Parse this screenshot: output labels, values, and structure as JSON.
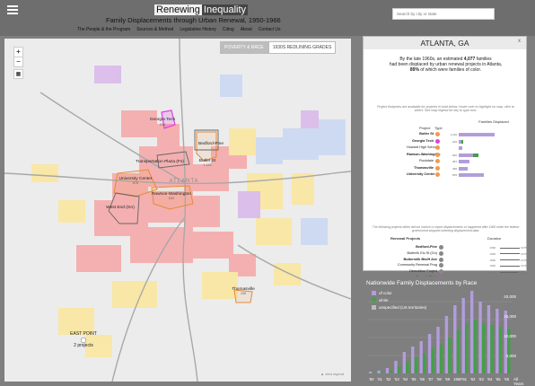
{
  "header": {
    "brand_part1": "Renewing",
    "brand_part2": "Inequality",
    "subtitle": "Family Displacements through Urban Renewal, 1950-1966",
    "nav": [
      "The People & the Program",
      "Sources & Method",
      "Legislative History",
      "Citing",
      "About",
      "Contact Us"
    ],
    "search_placeholder": "Search by city or state"
  },
  "map": {
    "toggle_active": "POVERTY & RACE",
    "toggle_inactive": "1930S REDLINING GRADES",
    "zoom_in": "+",
    "zoom_out": "−",
    "view_legend": "view legend",
    "city_label": "ATLANTA",
    "labels": [
      {
        "name": "Georgia Tech",
        "value": "216"
      },
      {
        "name": "Bedford-Pine",
        "value": ""
      },
      {
        "name": "Butler St",
        "value": "1,126"
      },
      {
        "name": "Transportation Plaza (Fs)",
        "value": ""
      },
      {
        "name": "University Center",
        "value": "878"
      },
      {
        "name": "Rawson-Washington",
        "value": "640"
      },
      {
        "name": "West End (Gn)",
        "value": ""
      },
      {
        "name": "Thomasville",
        "value": "336"
      },
      {
        "name": "EAST POINT",
        "value": "2 projects"
      }
    ],
    "colors": {
      "red": "#f6a6a6",
      "yellow": "#fbe79c",
      "blue": "#c9d8f3",
      "purple": "#d9b7ea",
      "orange": "#f29a4a",
      "magenta": "#e040e0"
    }
  },
  "panel": {
    "title": "ATLANTA, GA",
    "close": "x",
    "intro_line1": "By the late 1960s, an estimated",
    "families": "4,077",
    "intro_line1b": "families",
    "intro_line2": "had been displaced by urban renewal projects in Atlanta,",
    "pct": "89%",
    "intro_line3": "of which were families of color.",
    "note1": "Project footprints are available for projects in bold below. Hover over to highlight on map, click to select. See map legend for key to type icon.",
    "col_project": "Project",
    "col_type": "Type",
    "col_families": "Families Displaced",
    "projects": [
      {
        "name": "Butler St",
        "color": "#f29a4a",
        "bold": true,
        "value": "1,126",
        "color_frac": 1.0,
        "white_frac": 0.0
      },
      {
        "name": "Georgia Tech",
        "color": "#e040e0",
        "bold": true,
        "value": "216",
        "color_frac": 0.08,
        "white_frac": 0.05
      },
      {
        "name": "Howard High School",
        "color": "#f29a4a",
        "bold": false,
        "value": "",
        "color_frac": 0.1,
        "white_frac": 0.0
      },
      {
        "name": "Rawson-Washington",
        "color": "#f29a4a",
        "bold": true,
        "value": "640",
        "color_frac": 0.4,
        "white_frac": 0.15
      },
      {
        "name": "Rockdale",
        "color": "#f29a4a",
        "bold": false,
        "value": "381",
        "color_frac": 0.3,
        "white_frac": 0.0
      },
      {
        "name": "Thomasville",
        "color": "#f29a4a",
        "bold": true,
        "value": "336",
        "color_frac": 0.25,
        "white_frac": 0.0
      },
      {
        "name": "University Center",
        "color": "#f29a4a",
        "bold": true,
        "value": "878",
        "color_frac": 0.7,
        "white_frac": 0.0
      }
    ],
    "note2": "The following projects either did not involve or report displacements or happened after 1966 when the federal government stopped collecting displacement data.",
    "col_renewal": "Renewal Projects",
    "col_duration": "Duration",
    "renewal": [
      {
        "name": "Bedford-Pine",
        "bold": true,
        "start": "1966",
        "end": "1975",
        "color": "#888"
      },
      {
        "name": "Butler/ik Elu St (Gn)",
        "bold": false,
        "start": "1966",
        "end": "1975",
        "color": "#888"
      },
      {
        "name": "Buttermilk Bts/H Ave",
        "bold": true,
        "start": "1966",
        "end": "1975",
        "color": "#888"
      },
      {
        "name": "Community Renewal Prog",
        "bold": false,
        "start": "1966",
        "end": "1975",
        "color": "#888"
      },
      {
        "name": "Demolition Project",
        "bold": false,
        "start": "1966",
        "end": "1974",
        "color": "#888"
      },
      {
        "name": "Georgia State",
        "bold": false,
        "start": "1966",
        "end": "1971",
        "color": "#e040e0"
      },
      {
        "name": "Interim Asst Prog",
        "bold": false,
        "start": "1966",
        "end": "1974",
        "color": "#888"
      },
      {
        "name": "Neighborhood Dev Prog",
        "bold": false,
        "start": "1966",
        "end": "1974",
        "color": "#888"
      },
      {
        "name": "Transportation Plaza (Fs)",
        "bold": true,
        "start": "1961",
        "end": "1974",
        "color": "#888"
      }
    ]
  },
  "chart_data": {
    "type": "bar",
    "title": "Nationwide Family Displacements by Race",
    "legend": [
      {
        "name": "of color",
        "color": "#b39ddb"
      },
      {
        "name": "white",
        "color": "#43a047"
      },
      {
        "name": "unspecified (US territories)",
        "color": "#bdbdbd"
      }
    ],
    "categories": [
      "'50",
      "'51",
      "'52",
      "'53",
      "'54",
      "'55",
      "'56",
      "'57",
      "'58",
      "'59",
      "1960",
      "'61",
      "'62",
      "'63",
      "'64",
      "'65",
      "'66"
    ],
    "x_tick_labels": [
      "'50",
      "'51",
      "'52",
      "'53",
      "'54",
      "'55",
      "'56",
      "'57",
      "'58",
      "'59",
      "1960",
      "'61",
      "'62",
      "'63",
      "'64",
      "'65",
      "'66"
    ],
    "series": [
      {
        "name": "of color",
        "values": [
          500,
          800,
          1500,
          3500,
          6000,
          7500,
          9000,
          11000,
          13000,
          16000,
          19000,
          21000,
          23000,
          20000,
          19000,
          18000,
          17500
        ]
      },
      {
        "name": "white",
        "values": [
          200,
          400,
          900,
          2000,
          3500,
          4500,
          5500,
          7000,
          8000,
          10000,
          12000,
          14000,
          15000,
          14000,
          13500,
          13000,
          12500
        ]
      }
    ],
    "ylim": [
      0,
      22000
    ],
    "y_ticks": [
      "20,000",
      "15,000",
      "10,000",
      "5,000"
    ],
    "all_years": "All Years"
  }
}
